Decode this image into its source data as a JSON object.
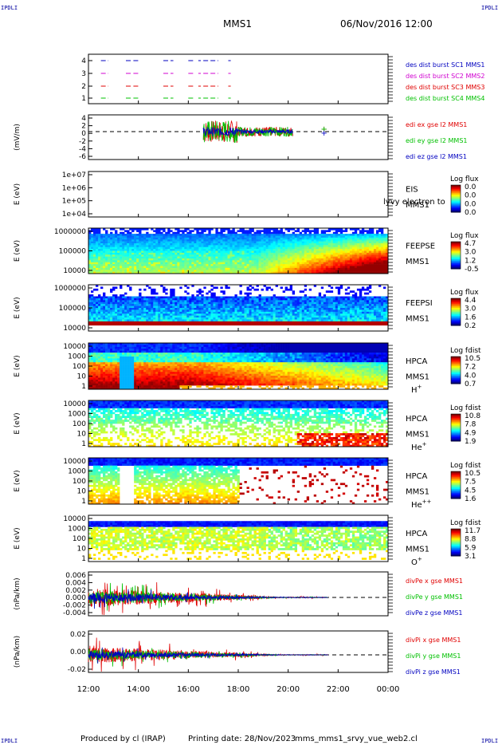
{
  "header": {
    "corner_tl": "IPDLI",
    "corner_tr": "IPDLI",
    "corner_bl": "IPDLI",
    "corner_br": "IPDLI",
    "spacecraft": "MMS1",
    "datetime": "06/Nov/2016 12:00"
  },
  "footer": {
    "produced_by": "Produced by cl (IRAP)",
    "printing_date": "Printing date: 28/Nov/2023",
    "file": "mms_mms1_srvy_vue_web2.cl"
  },
  "colors": {
    "red": "#e00000",
    "green": "#00c000",
    "blue": "#0000c0",
    "magenta": "#d000d0"
  },
  "chart_data": [
    {
      "type": "line",
      "panel": "burst",
      "yticks": [
        "1",
        "2",
        "3",
        "4"
      ],
      "ylim": [
        0.5,
        4.5
      ],
      "series": [
        {
          "name": "des dist burst SC1 MMS1",
          "color": "#0000c0",
          "value": 4
        },
        {
          "name": "des dist burst SC2 MMS2",
          "color": "#d000d0",
          "value": 3
        },
        {
          "name": "des dist burst SC3 MMS3",
          "color": "#e00000",
          "value": 2
        },
        {
          "name": "des dist burst SC4 MMS4",
          "color": "#00c000",
          "value": 1
        }
      ],
      "intervals_hours": [
        [
          12.5,
          12.8
        ],
        [
          13.5,
          13.7
        ],
        [
          13.8,
          14.0
        ],
        [
          15.0,
          15.4
        ],
        [
          16.0,
          16.2
        ],
        [
          16.4,
          16.5
        ],
        [
          16.6,
          17.2
        ],
        [
          17.6,
          17.7
        ]
      ]
    },
    {
      "type": "line",
      "panel": "edi",
      "ylabel": "(mV/m)",
      "yticks": [
        "-6",
        "-4",
        "-2",
        "0",
        "2",
        "4"
      ],
      "ylim": [
        -7,
        5
      ],
      "series": [
        {
          "name": "edi ex gse l2 MMS1",
          "color": "#e00000"
        },
        {
          "name": "edi ey gse l2 MMS1",
          "color": "#00c000"
        },
        {
          "name": "edi ez gse l2 MMS1",
          "color": "#0000c0"
        }
      ],
      "time_range_hours": [
        16.6,
        21.4
      ]
    },
    {
      "type": "heatmap",
      "panel": "eis",
      "ylabel": "E (eV)",
      "yticks": [
        "1e+04",
        "1e+05",
        "1e+06",
        "1e+07"
      ],
      "right_labels": [
        "EIS",
        "MMS1"
      ],
      "overlay_text": "lyvy electron to",
      "colorbar": {
        "title": "Log flux",
        "ticks": [
          "0.0",
          "0.0",
          "0.0",
          "0.0"
        ]
      }
    },
    {
      "type": "heatmap",
      "panel": "feepse",
      "ylabel": "E (eV)",
      "yticks": [
        "10000",
        "100000",
        "1000000"
      ],
      "right_labels": [
        "FEEPSE",
        "MMS1"
      ],
      "colorbar": {
        "title": "Log flux",
        "ticks": [
          "4.7",
          "3.0",
          "1.2",
          "-0.5"
        ]
      }
    },
    {
      "type": "heatmap",
      "panel": "feepsi",
      "ylabel": "E (eV)",
      "yticks": [
        "10000",
        "100000",
        "1000000"
      ],
      "right_labels": [
        "FEEPSI",
        "MMS1"
      ],
      "colorbar": {
        "title": "Log flux",
        "ticks": [
          "4.4",
          "3.0",
          "1.6",
          "0.2"
        ]
      }
    },
    {
      "type": "heatmap",
      "panel": "hpca_h",
      "ylabel": "E (eV)",
      "yticks": [
        "1",
        "10",
        "100",
        "1000",
        "10000"
      ],
      "right_labels": [
        "HPCA",
        "MMS1"
      ],
      "species": "H",
      "species_sup": "+",
      "colorbar": {
        "title": "Log fdist",
        "ticks": [
          "10.5",
          "7.2",
          "4.0",
          "0.7"
        ]
      }
    },
    {
      "type": "heatmap",
      "panel": "hpca_he",
      "ylabel": "E (eV)",
      "yticks": [
        "1",
        "10",
        "100",
        "1000",
        "10000"
      ],
      "right_labels": [
        "HPCA",
        "MMS1"
      ],
      "species": "He",
      "species_sup": "+",
      "colorbar": {
        "title": "Log fdist",
        "ticks": [
          "10.8",
          "7.8",
          "4.9",
          "1.9"
        ]
      }
    },
    {
      "type": "heatmap",
      "panel": "hpca_he2",
      "ylabel": "E (eV)",
      "yticks": [
        "1",
        "10",
        "100",
        "1000",
        "10000"
      ],
      "right_labels": [
        "HPCA",
        "MMS1"
      ],
      "species": "He",
      "species_sup": "++",
      "colorbar": {
        "title": "Log fdist",
        "ticks": [
          "10.5",
          "7.5",
          "4.5",
          "1.6"
        ]
      }
    },
    {
      "type": "heatmap",
      "panel": "hpca_o",
      "ylabel": "E (eV)",
      "yticks": [
        "1",
        "10",
        "100",
        "1000",
        "10000"
      ],
      "right_labels": [
        "HPCA",
        "MMS1"
      ],
      "species": "O",
      "species_sup": "+",
      "colorbar": {
        "title": "Log fdist",
        "ticks": [
          "11.7",
          "8.8",
          "5.9",
          "3.1"
        ]
      }
    },
    {
      "type": "line",
      "panel": "divpe",
      "ylabel": "(nPa/km)",
      "yticks": [
        "-0.004",
        "-0.002",
        "0.000",
        "0.002",
        "0.004",
        "0.006"
      ],
      "ylim": [
        -0.005,
        0.0065
      ],
      "series": [
        {
          "name": "divPe x gse MMS1",
          "color": "#e00000"
        },
        {
          "name": "divPe y gse MMS1",
          "color": "#00c000"
        },
        {
          "name": "divPe z gse MMS1",
          "color": "#0000c0"
        }
      ],
      "time_range_hours": [
        12.0,
        21.6
      ]
    },
    {
      "type": "line",
      "panel": "divpi",
      "ylabel": "(nPa/km)",
      "yticks": [
        "-0.02",
        "0.00",
        "0.02"
      ],
      "ylim": [
        -0.03,
        0.035
      ],
      "series": [
        {
          "name": "divPi x gse MMS1",
          "color": "#e00000"
        },
        {
          "name": "divPi y gse MMS1",
          "color": "#00c000"
        },
        {
          "name": "divPi z gse MMS1",
          "color": "#0000c0"
        }
      ],
      "time_range_hours": [
        12.0,
        21.6
      ]
    }
  ],
  "time_axis": {
    "labels": [
      "12:00",
      "14:00",
      "16:00",
      "18:00",
      "20:00",
      "22:00",
      "00:00"
    ],
    "range_hours": [
      12,
      24
    ]
  }
}
